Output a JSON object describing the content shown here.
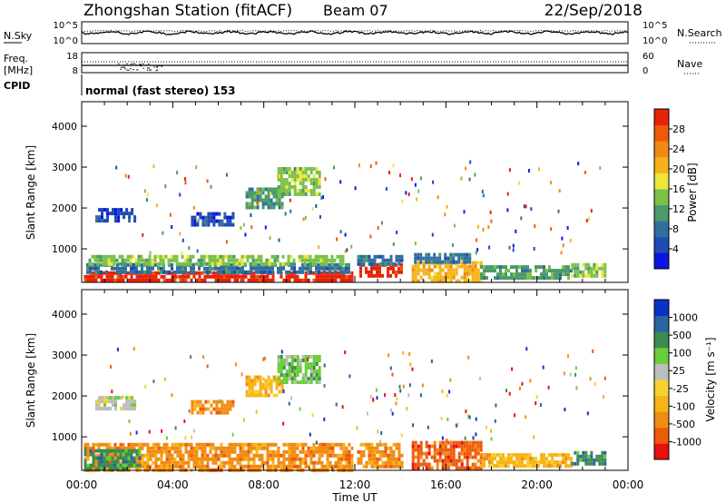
{
  "header": {
    "station": "Zhongshan Station (fitACF)",
    "beam": "Beam 07",
    "date": "22/Sep/2018"
  },
  "noise_panel": {
    "left_label": "N.Sky",
    "right_label": "N.Search",
    "left_ticks": [
      "10^5",
      "10^0"
    ],
    "right_ticks": [
      "10^5",
      "10^0"
    ]
  },
  "freq_panel": {
    "left_label_line1": "Freq.",
    "left_label_line2": "[MHz]",
    "right_label": "Nave",
    "left_ticks": [
      "18",
      "8"
    ],
    "right_ticks": [
      "60",
      "0"
    ]
  },
  "cpid": {
    "label": "CPID",
    "value": "normal (fast stereo) 153"
  },
  "colors": {
    "power": [
      "#0a14e6",
      "#1e4bb4",
      "#2f6fa0",
      "#4a9a6a",
      "#7cc04a",
      "#ece63c",
      "#f5b319",
      "#f08a12",
      "#ee5a0a",
      "#e82308"
    ],
    "velocity": [
      "#e80f0f",
      "#ee5a0a",
      "#f28c14",
      "#f7b419",
      "#f5d232",
      "#bdbdbd",
      "#6acd3a",
      "#3c8c50",
      "#2864a0",
      "#0a32c8"
    ]
  },
  "chart_data": [
    {
      "type": "heatmap",
      "name": "power",
      "ylabel": "Slant Range [km]",
      "ylim": [
        180,
        4600
      ],
      "yticks": [
        1000,
        2000,
        3000,
        4000
      ],
      "colorbar_label": "Power [dB]",
      "colorbar_ticks": [
        "4",
        "8",
        "12",
        "16",
        "20",
        "24",
        "28"
      ],
      "patches": [
        {
          "t0": 0.1,
          "t1": 11.9,
          "r0": 200,
          "r1": 450,
          "c": 9
        },
        {
          "t0": 0.2,
          "t1": 11.8,
          "r0": 450,
          "r1": 650,
          "c": 2
        },
        {
          "t0": 0.3,
          "t1": 11.5,
          "r0": 650,
          "r1": 850,
          "c": 4
        },
        {
          "t0": 12.2,
          "t1": 14.0,
          "r0": 300,
          "r1": 650,
          "c": 9
        },
        {
          "t0": 12.1,
          "t1": 14.1,
          "r0": 650,
          "r1": 850,
          "c": 2
        },
        {
          "t0": 14.5,
          "t1": 17.5,
          "r0": 250,
          "r1": 700,
          "c": 6
        },
        {
          "t0": 14.6,
          "t1": 17.0,
          "r0": 700,
          "r1": 900,
          "c": 2
        },
        {
          "t0": 17.5,
          "t1": 21.5,
          "r0": 300,
          "r1": 600,
          "c": 3
        },
        {
          "t0": 21.5,
          "t1": 23.0,
          "r0": 350,
          "r1": 650,
          "c": 4
        },
        {
          "t0": 0.6,
          "t1": 2.3,
          "r0": 1700,
          "r1": 2000,
          "c": 1
        },
        {
          "t0": 4.8,
          "t1": 6.7,
          "r0": 1600,
          "r1": 1900,
          "c": 1
        },
        {
          "t0": 7.2,
          "t1": 8.8,
          "r0": 2000,
          "r1": 2500,
          "c": 3
        },
        {
          "t0": 8.6,
          "t1": 10.4,
          "r0": 2300,
          "r1": 3000,
          "c": 4
        }
      ]
    },
    {
      "type": "heatmap",
      "name": "velocity",
      "ylabel": "Slant Range [km]",
      "ylim": [
        180,
        4600
      ],
      "yticks": [
        1000,
        2000,
        3000,
        4000
      ],
      "xlabel": "Time UT",
      "xlim": [
        0,
        24
      ],
      "xticks": [
        "00:00",
        "04:00",
        "08:00",
        "12:00",
        "16:00",
        "20:00",
        "00:00"
      ],
      "colorbar_label": "Velocity [m s⁻¹]",
      "colorbar_ticks": [
        "-1000",
        "-500",
        "-100",
        "-25",
        "25",
        "100",
        "500",
        "1000"
      ],
      "patches": [
        {
          "t0": 0.1,
          "t1": 11.9,
          "r0": 200,
          "r1": 850,
          "c": 2
        },
        {
          "t0": 0.1,
          "t1": 2.5,
          "r0": 200,
          "r1": 700,
          "c": 7
        },
        {
          "t0": 12.1,
          "t1": 14.1,
          "r0": 250,
          "r1": 850,
          "c": 2
        },
        {
          "t0": 14.5,
          "t1": 17.5,
          "r0": 250,
          "r1": 900,
          "c": 1
        },
        {
          "t0": 17.5,
          "t1": 21.5,
          "r0": 300,
          "r1": 600,
          "c": 3
        },
        {
          "t0": 21.5,
          "t1": 23.0,
          "r0": 350,
          "r1": 650,
          "c": 7
        },
        {
          "t0": 0.6,
          "t1": 2.3,
          "r0": 1700,
          "r1": 2000,
          "c": 5
        },
        {
          "t0": 4.8,
          "t1": 6.7,
          "r0": 1600,
          "r1": 1900,
          "c": 2
        },
        {
          "t0": 7.2,
          "t1": 8.8,
          "r0": 2000,
          "r1": 2500,
          "c": 3
        },
        {
          "t0": 8.6,
          "t1": 10.4,
          "r0": 2300,
          "r1": 3000,
          "c": 6
        }
      ]
    }
  ]
}
